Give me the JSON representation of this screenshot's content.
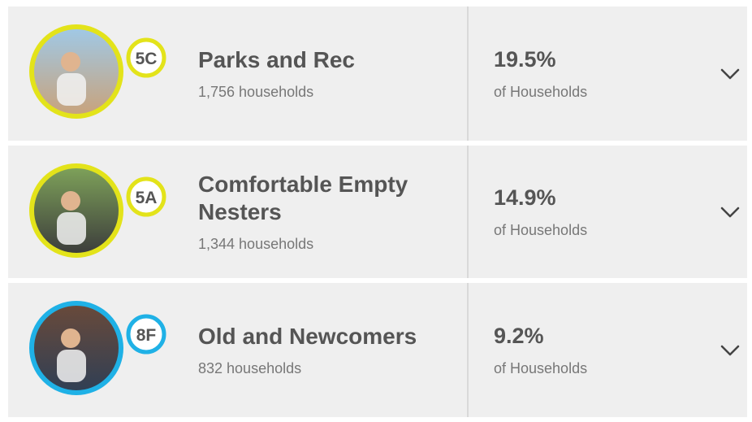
{
  "segments": [
    {
      "code": "5C",
      "name": "Parks and Rec",
      "households": "1,756 households",
      "percent": "19.5%",
      "percent_label": "of Households",
      "ring_color": "#e3e31a"
    },
    {
      "code": "5A",
      "name": "Comfortable Empty Nesters",
      "households": "1,344 households",
      "percent": "14.9%",
      "percent_label": "of Households",
      "ring_color": "#e3e31a"
    },
    {
      "code": "8F",
      "name": "Old and Newcomers",
      "households": "832 households",
      "percent": "9.2%",
      "percent_label": "of Households",
      "ring_color": "#1fb1e6"
    }
  ]
}
